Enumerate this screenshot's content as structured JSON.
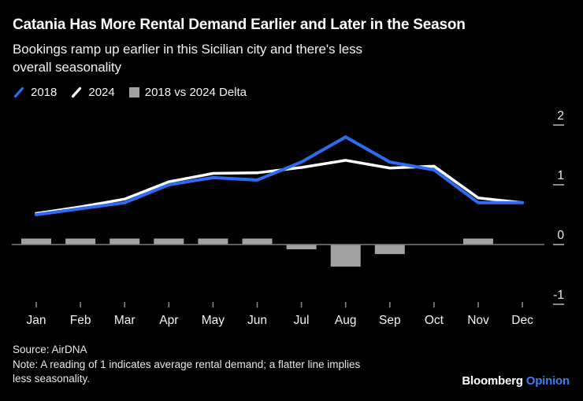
{
  "header": {
    "title": "Catania Has More Rental Demand Earlier and Later in the Season",
    "subtitle_lines": [
      "Bookings ramp up earlier in this Sicilian city and there's less",
      "overall seasonality"
    ]
  },
  "legend": [
    {
      "label": "2018",
      "swatch": "line",
      "color": "#2d6cf0"
    },
    {
      "label": "2024",
      "swatch": "line",
      "color": "#ffffff"
    },
    {
      "label": "2018 vs 2024 Delta",
      "swatch": "square",
      "color": "#a2a2a2"
    }
  ],
  "chart_data": {
    "type": "line+bar",
    "categories": [
      "Jan",
      "Feb",
      "Mar",
      "Apr",
      "May",
      "Jun",
      "Jul",
      "Aug",
      "Sep",
      "Oct",
      "Nov",
      "Dec"
    ],
    "series": [
      {
        "name": "2024",
        "type": "line",
        "color": "#ffffff",
        "values": [
          0.52,
          0.63,
          0.76,
          1.05,
          1.19,
          1.2,
          1.29,
          1.41,
          1.28,
          1.31,
          0.78,
          0.7
        ]
      },
      {
        "name": "2018",
        "type": "line",
        "color": "#2d6cf0",
        "values": [
          0.5,
          0.6,
          0.7,
          1.0,
          1.12,
          1.08,
          1.38,
          1.8,
          1.38,
          1.25,
          0.7,
          0.7
        ]
      },
      {
        "name": "2018 vs 2024 Delta",
        "type": "bar",
        "color": "#a2a2a2",
        "values": [
          0.1,
          0.1,
          0.1,
          0.1,
          0.1,
          0.1,
          -0.08,
          -0.37,
          -0.16,
          0,
          0.1,
          0
        ]
      }
    ],
    "yticks": [
      {
        "label": "2",
        "value": 2
      },
      {
        "label": "1",
        "value": 1
      },
      {
        "label": "0",
        "value": 0
      },
      {
        "label": "-1",
        "value": -1
      }
    ],
    "ylim": [
      -1.2,
      2.2
    ],
    "grid": false,
    "zero_line": true,
    "legend_position": "top-left",
    "axis_color": "#8c8c8c",
    "tick_label_color": "#eaeaea",
    "month_label_color": "#f2f2f2"
  },
  "footer": {
    "source": "Source: AirDNA",
    "note_lines": [
      "Note: A reading of 1 indicates average rental demand; a flatter line implies",
      "less seasonality."
    ],
    "brand_name": "Bloomberg",
    "brand_division": "Opinion",
    "brand_division_color": "#3b7ef2"
  }
}
